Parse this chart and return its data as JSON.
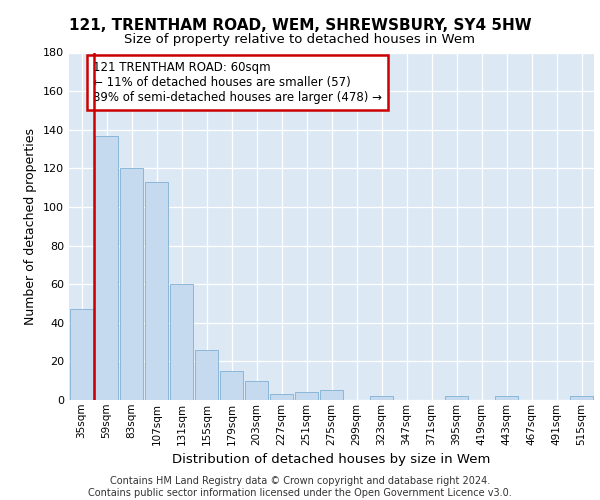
{
  "title1": "121, TRENTHAM ROAD, WEM, SHREWSBURY, SY4 5HW",
  "title2": "Size of property relative to detached houses in Wem",
  "xlabel": "Distribution of detached houses by size in Wem",
  "ylabel": "Number of detached properties",
  "categories": [
    "35sqm",
    "59sqm",
    "83sqm",
    "107sqm",
    "131sqm",
    "155sqm",
    "179sqm",
    "203sqm",
    "227sqm",
    "251sqm",
    "275sqm",
    "299sqm",
    "323sqm",
    "347sqm",
    "371sqm",
    "395sqm",
    "419sqm",
    "443sqm",
    "467sqm",
    "491sqm",
    "515sqm"
  ],
  "values": [
    47,
    137,
    120,
    113,
    60,
    26,
    15,
    10,
    3,
    4,
    5,
    0,
    2,
    0,
    0,
    2,
    0,
    2,
    0,
    0,
    2
  ],
  "bar_color": "#c5d9ef",
  "bar_edge_color": "#7fafd4",
  "vline_color": "#cc0000",
  "annotation_text": "121 TRENTHAM ROAD: 60sqm\n← 11% of detached houses are smaller (57)\n89% of semi-detached houses are larger (478) →",
  "annotation_box_color": "#cc0000",
  "footer": "Contains HM Land Registry data © Crown copyright and database right 2024.\nContains public sector information licensed under the Open Government Licence v3.0.",
  "ylim": [
    0,
    180
  ],
  "plot_bg": "#dce9f5",
  "grid_color": "#ffffff",
  "yticks": [
    0,
    20,
    40,
    60,
    80,
    100,
    120,
    140,
    160,
    180
  ]
}
